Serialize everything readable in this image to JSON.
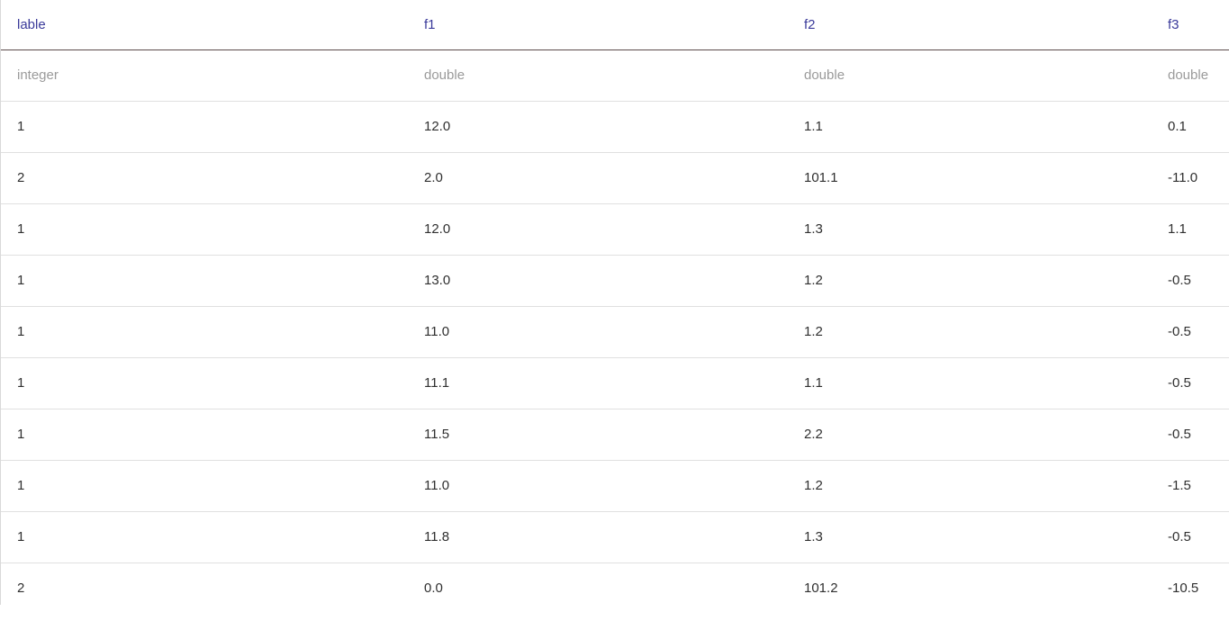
{
  "columns": [
    {
      "name": "lable",
      "type": "integer"
    },
    {
      "name": "f1",
      "type": "double"
    },
    {
      "name": "f2",
      "type": "double"
    },
    {
      "name": "f3",
      "type": "double"
    }
  ],
  "rows": [
    [
      "1",
      "12.0",
      "1.1",
      "0.1"
    ],
    [
      "2",
      "2.0",
      "101.1",
      "-11.0"
    ],
    [
      "1",
      "12.0",
      "1.3",
      "1.1"
    ],
    [
      "1",
      "13.0",
      "1.2",
      "-0.5"
    ],
    [
      "1",
      "11.0",
      "1.2",
      "-0.5"
    ],
    [
      "1",
      "11.1",
      "1.1",
      "-0.5"
    ],
    [
      "1",
      "11.5",
      "2.2",
      "-0.5"
    ],
    [
      "1",
      "11.0",
      "1.2",
      "-1.5"
    ],
    [
      "1",
      "11.8",
      "1.3",
      "-0.5"
    ],
    [
      "2",
      "0.0",
      "101.2",
      "-10.5"
    ]
  ],
  "colors": {
    "header_text": "#3a3a9a",
    "type_text": "#9a9a9a",
    "cell_text": "#2f2f2f",
    "header_rule": "#5a4a4a",
    "row_rule": "#e0e0e0"
  }
}
